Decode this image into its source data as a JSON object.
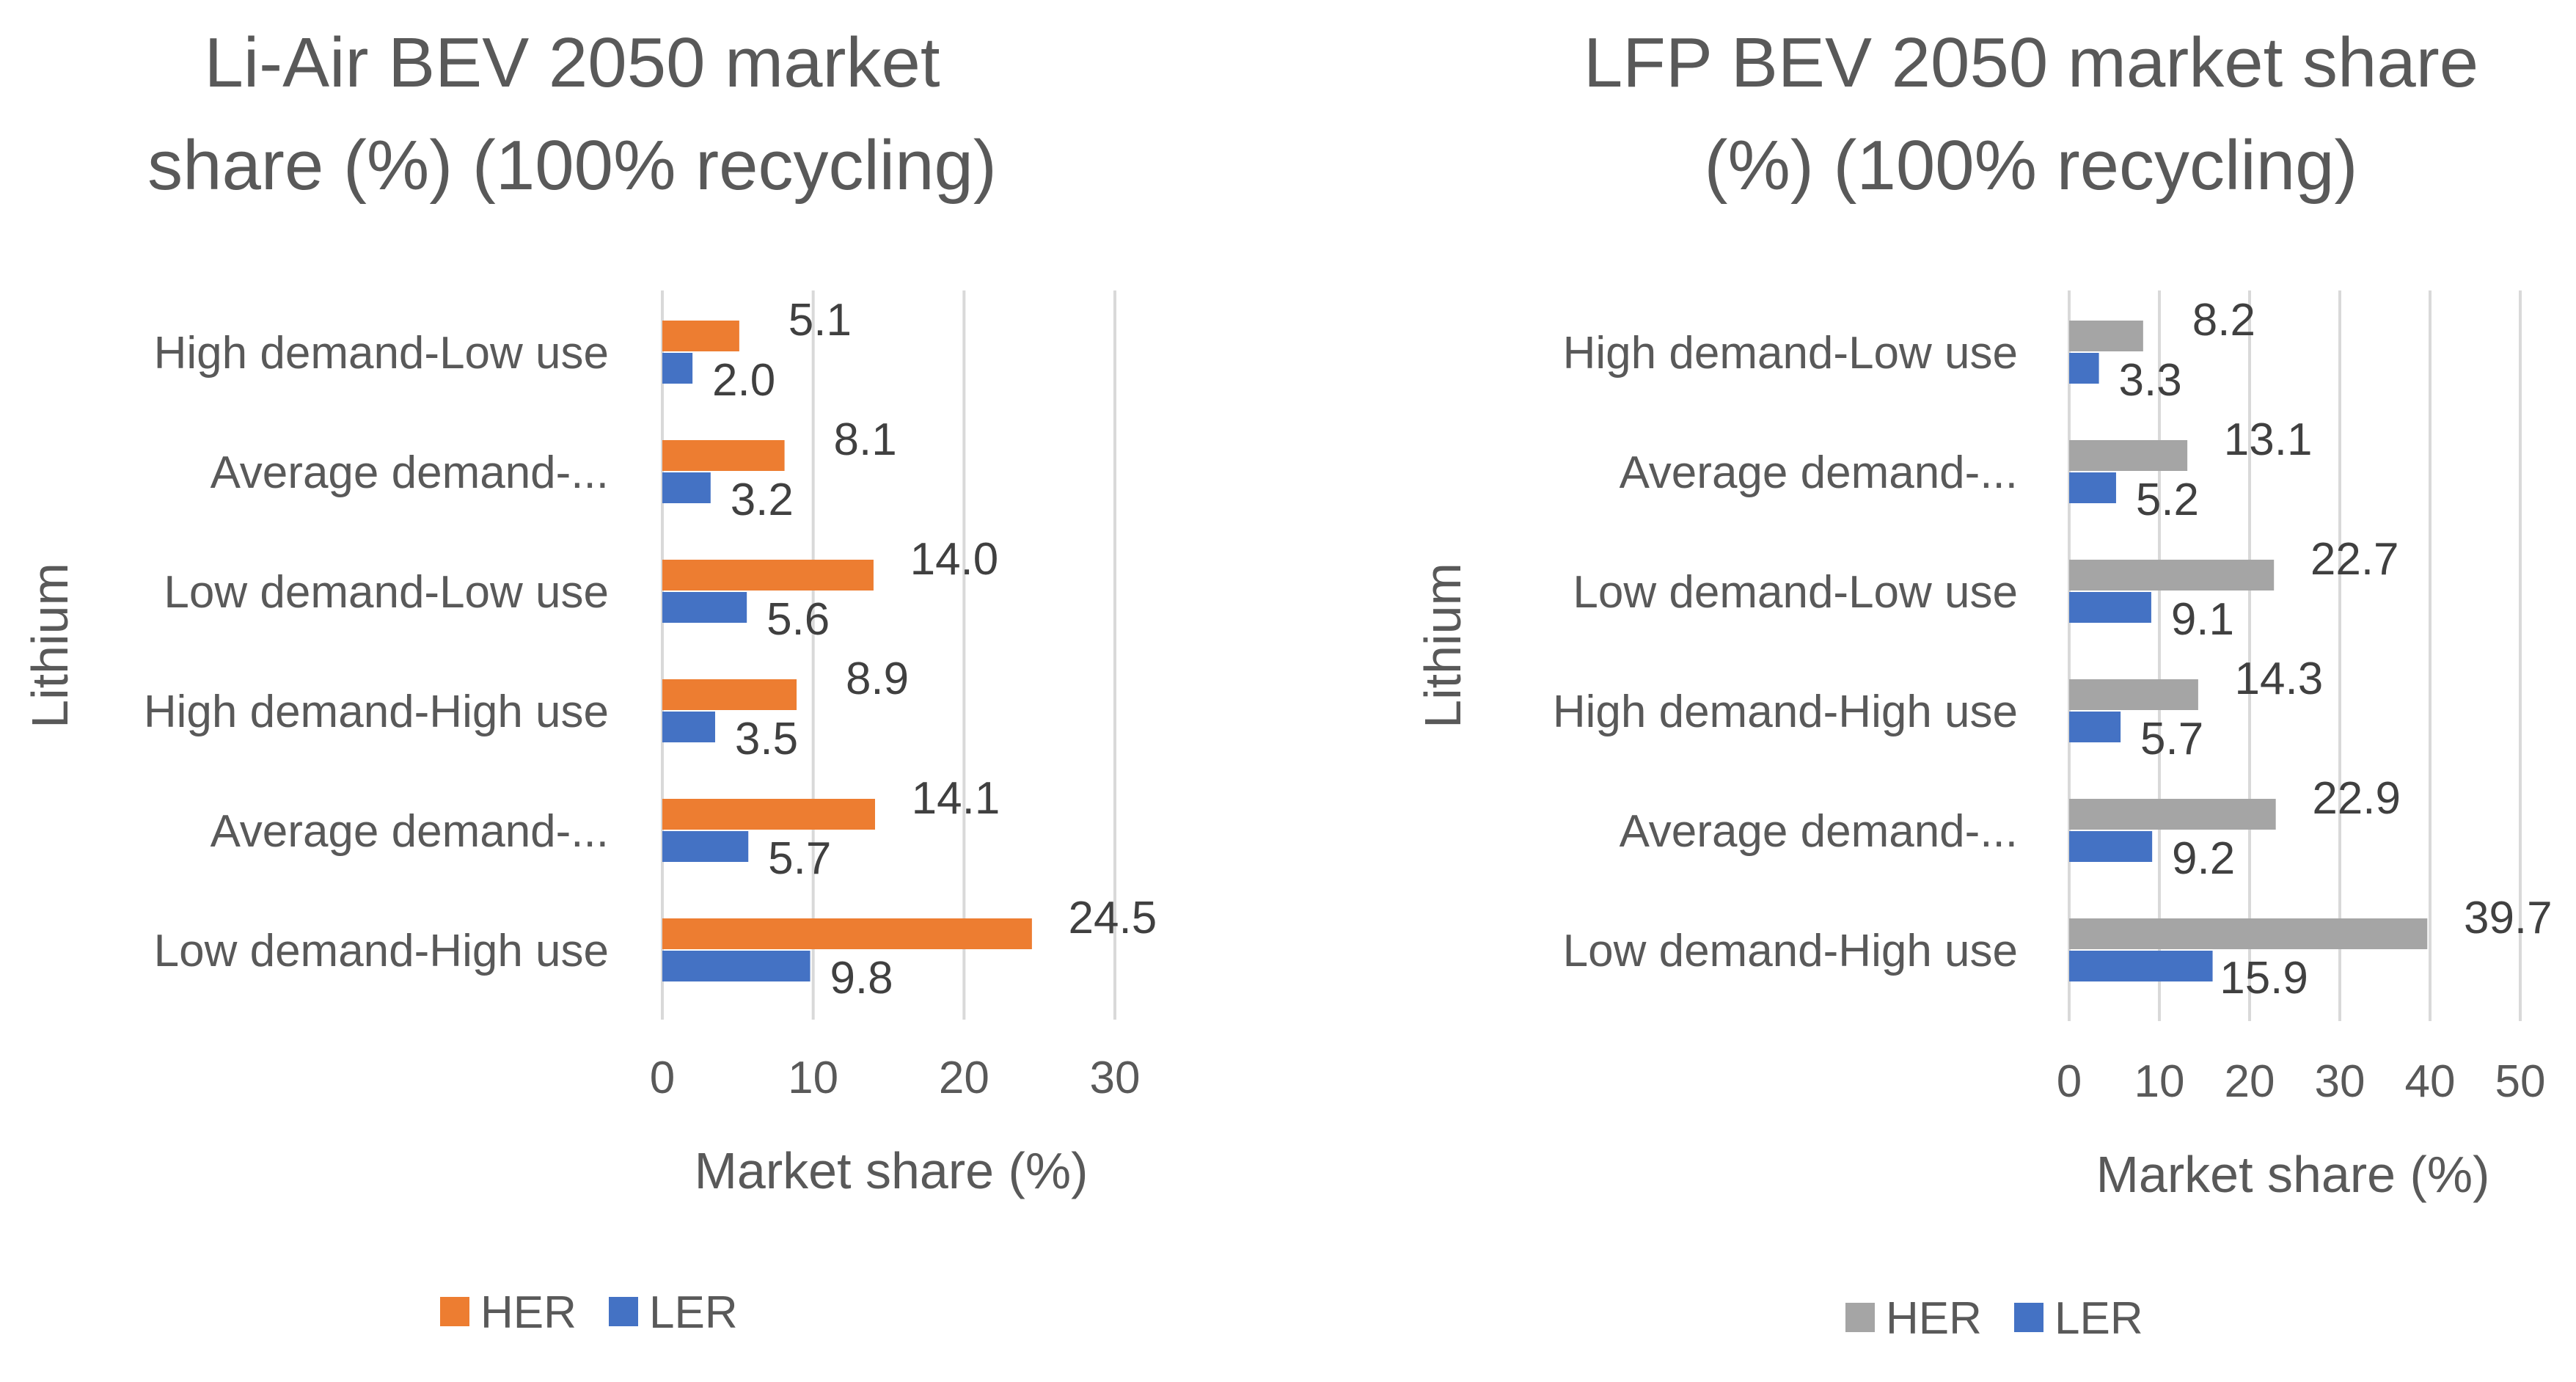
{
  "chart_data": [
    {
      "type": "bar",
      "orientation": "horizontal",
      "title_lines": [
        "Li-Air BEV 2050 market",
        "share (%) (100% recycling)"
      ],
      "ylabel": "Lithium",
      "xlabel": "Market share (%)",
      "xlim": [
        0,
        30
      ],
      "xticks": [
        0,
        10,
        20,
        30
      ],
      "grid": true,
      "categories": [
        "High demand-Low use",
        "Average demand-...",
        "Low demand-Low use",
        "High demand-High use",
        "Average demand-...",
        "Low demand-High use"
      ],
      "series": [
        {
          "name": "HER",
          "color": "#ED7D31",
          "values": [
            5.1,
            8.1,
            14.0,
            8.9,
            14.1,
            24.5
          ],
          "labels": [
            "5.1",
            "8.1",
            "14.0",
            "8.9",
            "14.1",
            "24.5"
          ]
        },
        {
          "name": "LER",
          "color": "#4472C4",
          "values": [
            2.0,
            3.2,
            5.6,
            3.5,
            5.7,
            9.8
          ],
          "labels": [
            "2.0",
            "3.2",
            "5.6",
            "3.5",
            "5.7",
            "9.8"
          ]
        }
      ],
      "legend": "bottom"
    },
    {
      "type": "bar",
      "orientation": "horizontal",
      "title_lines": [
        "LFP BEV 2050 market share",
        "(%) (100% recycling)"
      ],
      "ylabel": "Lithium",
      "xlabel": "Market share (%)",
      "xlim": [
        0,
        50
      ],
      "xticks": [
        0,
        10,
        20,
        30,
        40,
        50
      ],
      "grid": true,
      "categories": [
        "High demand-Low use",
        "Average demand-...",
        "Low demand-Low use",
        "High demand-High use",
        "Average demand-...",
        "Low demand-High use"
      ],
      "series": [
        {
          "name": "HER",
          "color": "#A5A5A5",
          "values": [
            8.2,
            13.1,
            22.7,
            14.3,
            22.9,
            39.7
          ],
          "labels": [
            "8.2",
            "13.1",
            "22.7",
            "14.3",
            "22.9",
            "39.7"
          ]
        },
        {
          "name": "LER",
          "color": "#4472C4",
          "values": [
            3.3,
            5.2,
            9.1,
            5.7,
            9.2,
            15.9
          ],
          "labels": [
            "3.3",
            "5.2",
            "9.1",
            "5.7",
            "9.2",
            "15.9"
          ]
        }
      ],
      "legend": "bottom"
    }
  ]
}
